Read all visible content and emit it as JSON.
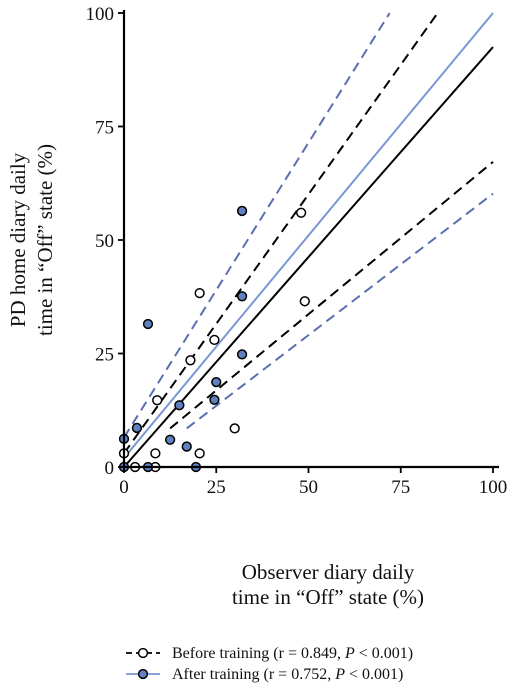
{
  "chart_data": {
    "type": "scatter",
    "xlabel_lines": [
      "Observer diary daily",
      "time in “Off” state (%)"
    ],
    "ylabel_lines": [
      "PD home diary daily",
      "time in “Off” state (%)"
    ],
    "xlim": [
      0,
      100
    ],
    "ylim": [
      0,
      100
    ],
    "xticks": [
      0,
      25,
      50,
      75,
      100
    ],
    "yticks": [
      0,
      25,
      50,
      75,
      100
    ],
    "grid": false,
    "legend_position": "bottom",
    "series": [
      {
        "name": "Before training",
        "legend_prefix": "Before training (r = 0.849, ",
        "legend_p": "P",
        "legend_suffix": " < 0.001)",
        "marker_fill": "#ffffff",
        "line_color": "#000000",
        "points": [
          [
            0,
            3
          ],
          [
            3,
            0
          ],
          [
            8.5,
            0
          ],
          [
            8.5,
            3
          ],
          [
            9,
            14.7
          ],
          [
            18,
            23.5
          ],
          [
            20.5,
            38.3
          ],
          [
            20.5,
            3
          ],
          [
            24.5,
            28
          ],
          [
            30,
            8.5
          ],
          [
            48,
            56
          ],
          [
            49,
            36.5
          ]
        ],
        "fit": [
          [
            0,
            0
          ],
          [
            100,
            92.5
          ]
        ],
        "ci_upper": [
          [
            0,
            3
          ],
          [
            85,
            100
          ]
        ],
        "ci_lower": [
          [
            12.5,
            8.5
          ],
          [
            100,
            67.2
          ]
        ]
      },
      {
        "name": "After training",
        "legend_prefix": "After training (r = 0.752, ",
        "legend_p": "P",
        "legend_suffix": " < 0.001)",
        "marker_fill": "#6080c0",
        "line_color": "#7b96d4",
        "points": [
          [
            0,
            0
          ],
          [
            0,
            6.2
          ],
          [
            3.5,
            8.6
          ],
          [
            6.5,
            0
          ],
          [
            6.5,
            31.5
          ],
          [
            12.5,
            6
          ],
          [
            15,
            13.6
          ],
          [
            17,
            4.5
          ],
          [
            19.5,
            0
          ],
          [
            24.5,
            14.8
          ],
          [
            25,
            18.7
          ],
          [
            32,
            24.8
          ],
          [
            32,
            37.6
          ],
          [
            32,
            56.4
          ]
        ],
        "fit": [
          [
            0,
            2
          ],
          [
            100,
            100
          ]
        ],
        "ci_upper": [
          [
            0,
            6.5
          ],
          [
            72,
            100
          ]
        ],
        "ci_lower": [
          [
            17,
            8.5
          ],
          [
            100,
            60.2
          ]
        ]
      }
    ]
  },
  "colors": {
    "axis": "#000000",
    "before_line": "#000000",
    "after_line": "#7b96d4",
    "after_ci": "#5a6fb0",
    "after_marker": "#6080c0"
  }
}
